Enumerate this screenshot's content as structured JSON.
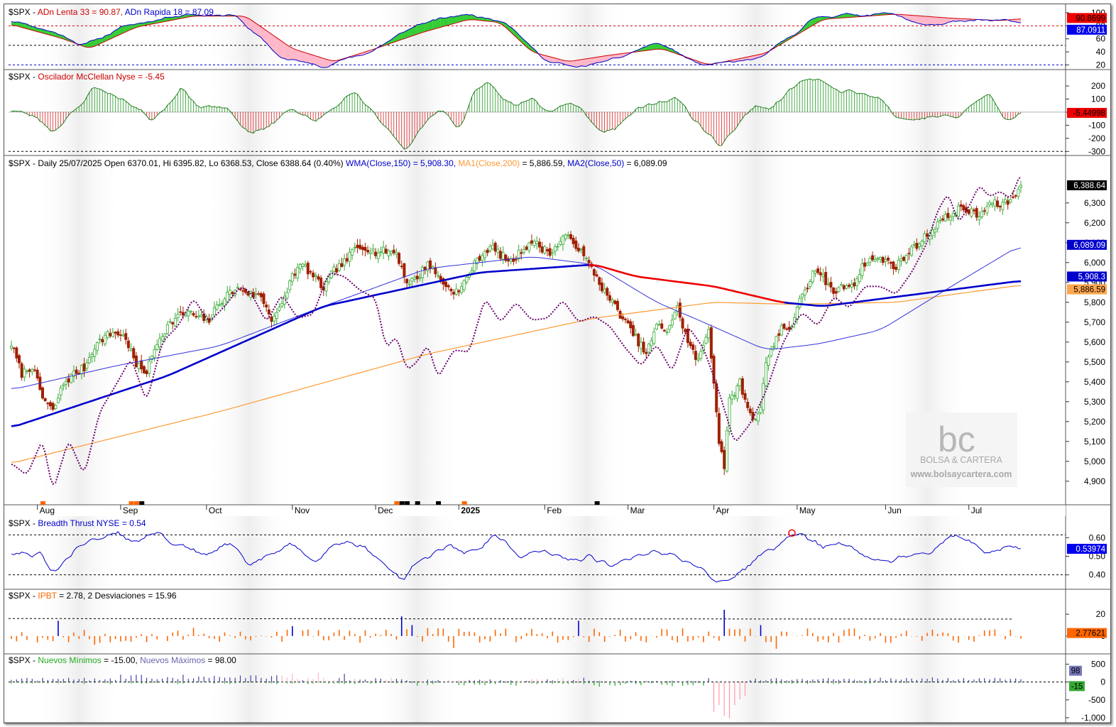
{
  "chart_data": [
    {
      "panel": "ad_oscillators",
      "type": "area",
      "title": "$SPX - ADn Lenta 33 = 90.87, ADn Rapida 18 = 87.09",
      "title_parts": {
        "prefix": "$SPX - ",
        "s1": "ADn Lenta 33 = 90.87, ",
        "s2": "ADn Rapida 18 = 87.09"
      },
      "series": [
        {
          "name": "ADn Lenta 33",
          "last": 90.87,
          "color": "#cc0000"
        },
        {
          "name": "ADn Rapida 18",
          "last": 87.09,
          "color": "#0000cc"
        }
      ],
      "y_ticks": [
        "100",
        "80",
        "60",
        "40",
        "20"
      ],
      "ylim": [
        15,
        100
      ],
      "reference_lines": [
        80,
        50,
        20
      ],
      "tags": [
        "90.8699",
        "87.0911"
      ],
      "fill_colors": {
        "up": "#33cc33",
        "down": "#ffb6c8"
      }
    },
    {
      "panel": "mcclellan",
      "type": "bar",
      "title": "$SPX - Oscilador McClellan Nyse = -5.45",
      "title_parts": {
        "prefix": "$SPX - ",
        "s1": "Oscilador McClellan Nyse = -5.45"
      },
      "last": -5.45,
      "y_ticks": [
        "200",
        "100",
        "0",
        "-100",
        "-200",
        "-300"
      ],
      "ylim": [
        -320,
        260
      ],
      "tag": "-5.44998",
      "colors": {
        "positive": "#229922",
        "negative": "#dd2222"
      }
    },
    {
      "panel": "price",
      "type": "candlestick",
      "title": "$SPX - Daily 25/07/2025 Open 6370.01, Hi 6395.82, Lo 6368.53, Close 6388.64 (0.40%) WMA(Close,150) = 5,908.30, MA1(Close,200) = 5,886.59, MA2(Close,50) = 6,089.09",
      "title_parts": {
        "prefix": "$SPX - Daily 25/07/2025 Open 6370.01, Hi 6395.82, Lo 6368.53, Close 6388.64 (0.40%) ",
        "wma": "WMA(Close,150) = 5,908.30, ",
        "ma1": "MA1(Close,200)",
        "ma1b": " = 5,886.59, ",
        "ma2": "MA2(Close,50)",
        "ma2b": " = 6,089.09"
      },
      "ohlc_last": {
        "open": 6370.01,
        "high": 6395.82,
        "low": 6368.53,
        "close": 6388.64,
        "change_pct": 0.4
      },
      "x_labels": [
        "Aug",
        "Sep",
        "Oct",
        "Nov",
        "Dec",
        "2025",
        "Feb",
        "Mar",
        "Apr",
        "May",
        "Jun",
        "Jul"
      ],
      "y_ticks": [
        "6,300",
        "6,200",
        "6,100",
        "6,000",
        "5,900",
        "5,800",
        "5,700",
        "5,600",
        "5,500",
        "5,400",
        "5,300",
        "5,200",
        "5,100",
        "5,000",
        "4,900"
      ],
      "ylim": [
        4810,
        6460
      ],
      "close_anchors": [
        [
          0,
          5590
        ],
        [
          4,
          5440
        ],
        [
          8,
          5480
        ],
        [
          12,
          5320
        ],
        [
          16,
          5250
        ],
        [
          20,
          5390
        ],
        [
          24,
          5440
        ],
        [
          28,
          5470
        ],
        [
          32,
          5580
        ],
        [
          36,
          5630
        ],
        [
          40,
          5650
        ],
        [
          44,
          5620
        ],
        [
          48,
          5480
        ],
        [
          52,
          5450
        ],
        [
          56,
          5600
        ],
        [
          60,
          5680
        ],
        [
          64,
          5730
        ],
        [
          68,
          5750
        ],
        [
          72,
          5720
        ],
        [
          76,
          5710
        ],
        [
          80,
          5800
        ],
        [
          84,
          5850
        ],
        [
          88,
          5870
        ],
        [
          92,
          5840
        ],
        [
          96,
          5830
        ],
        [
          100,
          5720
        ],
        [
          104,
          5780
        ],
        [
          108,
          5940
        ],
        [
          112,
          5990
        ],
        [
          116,
          5930
        ],
        [
          120,
          5870
        ],
        [
          124,
          5960
        ],
        [
          128,
          6000
        ],
        [
          132,
          6070
        ],
        [
          136,
          6080
        ],
        [
          140,
          6050
        ],
        [
          144,
          6060
        ],
        [
          148,
          6050
        ],
        [
          152,
          5900
        ],
        [
          156,
          5920
        ],
        [
          160,
          6000
        ],
        [
          164,
          5930
        ],
        [
          168,
          5870
        ],
        [
          172,
          5850
        ],
        [
          176,
          5950
        ],
        [
          180,
          6030
        ],
        [
          184,
          6080
        ],
        [
          188,
          6040
        ],
        [
          192,
          6000
        ],
        [
          196,
          6060
        ],
        [
          200,
          6110
        ],
        [
          204,
          6070
        ],
        [
          208,
          6050
        ],
        [
          212,
          6130
        ],
        [
          216,
          6110
        ],
        [
          220,
          6030
        ],
        [
          224,
          5950
        ],
        [
          228,
          5850
        ],
        [
          232,
          5780
        ],
        [
          236,
          5700
        ],
        [
          240,
          5620
        ],
        [
          244,
          5540
        ],
        [
          248,
          5680
        ],
        [
          252,
          5660
        ],
        [
          256,
          5770
        ],
        [
          260,
          5600
        ],
        [
          264,
          5500
        ],
        [
          268,
          5670
        ],
        [
          270,
          5400
        ],
        [
          272,
          5100
        ],
        [
          274,
          4980
        ],
        [
          276,
          5300
        ],
        [
          278,
          5350
        ],
        [
          280,
          5400
        ],
        [
          282,
          5300
        ],
        [
          284,
          5250
        ],
        [
          286,
          5200
        ],
        [
          288,
          5290
        ],
        [
          290,
          5500
        ],
        [
          292,
          5550
        ],
        [
          294,
          5620
        ],
        [
          296,
          5680
        ],
        [
          298,
          5660
        ],
        [
          300,
          5690
        ],
        [
          302,
          5760
        ],
        [
          304,
          5850
        ],
        [
          306,
          5880
        ],
        [
          308,
          5950
        ],
        [
          312,
          5920
        ],
        [
          316,
          5850
        ],
        [
          320,
          5880
        ],
        [
          324,
          5900
        ],
        [
          328,
          6000
        ],
        [
          332,
          6020
        ],
        [
          336,
          6010
        ],
        [
          340,
          5980
        ],
        [
          344,
          6040
        ],
        [
          348,
          6090
        ],
        [
          352,
          6140
        ],
        [
          356,
          6200
        ],
        [
          360,
          6230
        ],
        [
          364,
          6270
        ],
        [
          368,
          6260
        ],
        [
          372,
          6230
        ],
        [
          376,
          6300
        ],
        [
          380,
          6290
        ],
        [
          384,
          6310
        ],
        [
          388,
          6388.64
        ]
      ],
      "overlays": [
        {
          "name": "WMA(Close,150)",
          "last": 5908.3,
          "color": "#0000cc",
          "anchors": [
            [
              0,
              5170
            ],
            [
              60,
              5430
            ],
            [
              120,
              5780
            ],
            [
              180,
              5950
            ],
            [
              224,
              5990
            ],
            [
              240,
              5930
            ],
            [
              270,
              5880
            ],
            [
              296,
              5800
            ],
            [
              312,
              5780
            ],
            [
              388,
              5908.3
            ]
          ]
        },
        {
          "name": "MA1(Close,200)",
          "last": 5886.59,
          "color": "#ff9933",
          "anchors": [
            [
              0,
              4990
            ],
            [
              80,
              5250
            ],
            [
              160,
              5540
            ],
            [
              224,
              5720
            ],
            [
              270,
              5800
            ],
            [
              300,
              5790
            ],
            [
              340,
              5800
            ],
            [
              388,
              5886.59
            ]
          ]
        },
        {
          "name": "MA2(Close,50)",
          "last": 6089.09,
          "color": "#3333dd",
          "anchors": [
            [
              0,
              5360
            ],
            [
              40,
              5480
            ],
            [
              80,
              5580
            ],
            [
              120,
              5780
            ],
            [
              160,
              5970
            ],
            [
              200,
              6030
            ],
            [
              224,
              5990
            ],
            [
              248,
              5800
            ],
            [
              266,
              5700
            ],
            [
              290,
              5560
            ],
            [
              310,
              5590
            ],
            [
              334,
              5660
            ],
            [
              360,
              5870
            ],
            [
              388,
              6089.09
            ]
          ]
        },
        {
          "name": "Breadth oscillator (dotted)",
          "color": "#6b006b",
          "anchors": [
            [
              0,
              4990
            ],
            [
              6,
              4930
            ],
            [
              12,
              5110
            ],
            [
              16,
              4850
            ],
            [
              22,
              5110
            ],
            [
              28,
              4930
            ],
            [
              34,
              5250
            ],
            [
              40,
              5380
            ],
            [
              46,
              5520
            ],
            [
              52,
              5300
            ],
            [
              58,
              5600
            ],
            [
              64,
              5680
            ],
            [
              70,
              5820
            ],
            [
              76,
              5700
            ],
            [
              82,
              5780
            ],
            [
              88,
              5880
            ],
            [
              92,
              5850
            ],
            [
              98,
              5700
            ],
            [
              104,
              5840
            ],
            [
              110,
              5720
            ],
            [
              116,
              5740
            ],
            [
              122,
              5950
            ],
            [
              128,
              5930
            ],
            [
              134,
              5860
            ],
            [
              140,
              5820
            ],
            [
              144,
              5570
            ],
            [
              148,
              5630
            ],
            [
              152,
              5460
            ],
            [
              156,
              5500
            ],
            [
              160,
              5590
            ],
            [
              164,
              5420
            ],
            [
              170,
              5560
            ],
            [
              176,
              5550
            ],
            [
              182,
              5820
            ],
            [
              188,
              5700
            ],
            [
              194,
              5800
            ],
            [
              200,
              5710
            ],
            [
              206,
              5720
            ],
            [
              212,
              5810
            ],
            [
              218,
              5700
            ],
            [
              224,
              5730
            ],
            [
              230,
              5680
            ],
            [
              236,
              5570
            ],
            [
              242,
              5480
            ],
            [
              248,
              5590
            ],
            [
              254,
              5450
            ],
            [
              260,
              5680
            ],
            [
              266,
              5570
            ],
            [
              272,
              5350
            ],
            [
              278,
              5090
            ],
            [
              284,
              5190
            ],
            [
              290,
              5350
            ],
            [
              296,
              5580
            ],
            [
              300,
              5680
            ],
            [
              304,
              5750
            ],
            [
              310,
              5680
            ],
            [
              316,
              5830
            ],
            [
              322,
              5770
            ],
            [
              328,
              5880
            ],
            [
              334,
              5880
            ],
            [
              340,
              5840
            ],
            [
              346,
              5950
            ],
            [
              352,
              6100
            ],
            [
              356,
              6260
            ],
            [
              360,
              6350
            ],
            [
              364,
              6200
            ],
            [
              368,
              6280
            ],
            [
              372,
              6390
            ],
            [
              376,
              6330
            ],
            [
              380,
              6360
            ],
            [
              384,
              6320
            ],
            [
              388,
              6450
            ]
          ]
        }
      ],
      "tags": [
        {
          "text": "6,388.64",
          "bg": "#000000",
          "fg": "#ffffff"
        },
        {
          "text": "6,089.09",
          "bg": "#0000cc",
          "fg": "#ffffff"
        },
        {
          "text": "5,908.3",
          "bg": "#0000cc",
          "fg": "#ffffff"
        },
        {
          "text": "5,886.59",
          "bg": "#ffa64d",
          "fg": "#000000"
        }
      ],
      "colors": {
        "up": "#33aa33",
        "down": "#a02000"
      }
    },
    {
      "panel": "breadth_thrust",
      "type": "line",
      "title": "$SPX - Breadth Thrust NYSE = 0.54",
      "title_parts": {
        "prefix": "$SPX - ",
        "s1": "Breadth Thrust NYSE = 0.54"
      },
      "last": 0.54,
      "y_ticks": [
        "0.60",
        "0.50",
        "0.40"
      ],
      "ylim": [
        0.33,
        0.67
      ],
      "reference_lines": [
        0.615,
        0.4
      ],
      "tag": "0.53974",
      "color": "#0000cc"
    },
    {
      "panel": "ipbt",
      "type": "bar",
      "title": "$SPX - IPBT = 2.78,    2 Desviaciones = 15.96",
      "title_parts": {
        "prefix": "$SPX - ",
        "s1": "IPBT",
        "s2": " = 2.78,    2 Desviaciones = 15.96"
      },
      "last": 2.78,
      "deviations": 15.96,
      "y_ticks": [
        "20",
        "0"
      ],
      "ylim": [
        -15,
        35
      ],
      "tag": "2.77621",
      "colors": {
        "normal": "#ff6600",
        "extreme": "#0000cc"
      }
    },
    {
      "panel": "new_highs_lows",
      "type": "bar",
      "title": "$SPX - Nuevos Mínimos = -15.00, Nuevos Máximos = 98.00",
      "title_parts": {
        "prefix": "$SPX - ",
        "s1": "Nuevos Mínimos",
        "s2": " = -15.00, ",
        "s3": "Nuevos Máximos",
        "s4": " = 98.00"
      },
      "series": [
        {
          "name": "Nuevos Mínimos",
          "last": -15.0,
          "color": "#22aa22"
        },
        {
          "name": "Nuevos Máximos",
          "last": 98.0,
          "color": "#4444aa"
        }
      ],
      "y_ticks": [
        "500",
        "0",
        "-500",
        "-1,000"
      ],
      "ylim": [
        -1100,
        550
      ],
      "tags": [
        "98",
        "-15"
      ]
    }
  ],
  "watermark": {
    "logo": "bc",
    "brand": "BOLSA & CARTERA",
    "url": "www.bolsaycartera.com"
  }
}
